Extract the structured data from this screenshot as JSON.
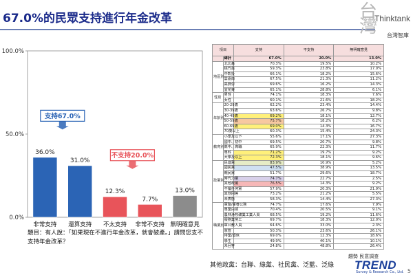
{
  "title": "67.0%的民眾支持進行年金改革",
  "brand": {
    "name": "Thinktank",
    "sub": "台灣智庫"
  },
  "chart_data": {
    "type": "bar",
    "categories": [
      "非常支持",
      "還算支持",
      "不太支持",
      "非常不支持",
      "無明確意見"
    ],
    "values": [
      36.0,
      31.0,
      12.3,
      7.7,
      13.0
    ],
    "value_labels": [
      "36.0%",
      "31.0%",
      "12.3%",
      "7.7%",
      "13.0%"
    ],
    "bar_colors": [
      "#2b64b5",
      "#2b64b5",
      "#e8545a",
      "#e8545a",
      "#8c8c8c"
    ],
    "ylim": [
      0,
      100
    ],
    "yticks": [
      "100.0%",
      "50.0%",
      "0.0%"
    ],
    "grid": false,
    "annotations": [
      {
        "text": "支持67.0%",
        "color": "#2b64b5",
        "spans": [
          0,
          1
        ]
      },
      {
        "text": "不支持20.0%",
        "color": "#e8545a",
        "spans": [
          2,
          3
        ]
      }
    ]
  },
  "question": "題目：有人說：「如果現在不進行年金改革，就會破產。」請問您支不支持年金改革？",
  "table": {
    "headers": [
      "項目",
      "支持",
      "不支持",
      "無明確意見"
    ],
    "total": {
      "label": "總計",
      "values": [
        "67.0%",
        "20.0%",
        "13.0%"
      ]
    },
    "groups": [
      {
        "name": "地區別",
        "rows": [
          {
            "label": "北北基",
            "values": [
              "70.3%",
              "19.5%",
              "10.2%"
            ]
          },
          {
            "label": "桃竹苗",
            "values": [
              "59.3%",
              "23.8%",
              "17.0%"
            ]
          },
          {
            "label": "中彰投",
            "values": [
              "66.1%",
              "18.2%",
              "15.6%"
            ]
          },
          {
            "label": "雲嘉南",
            "values": [
              "67.5%",
              "21.3%",
              "11.2%"
            ]
          },
          {
            "label": "高屏澎",
            "values": [
              "69.6%",
              "16.2%",
              "14.3%"
            ]
          },
          {
            "label": "宜花東",
            "values": [
              "65.1%",
              "28.8%",
              "6.1%"
            ]
          }
        ]
      },
      {
        "name": "性別",
        "rows": [
          {
            "label": "男性",
            "values": [
              "74.1%",
              "18.3%",
              "7.6%"
            ]
          },
          {
            "label": "女性",
            "values": [
              "60.1%",
              "21.6%",
              "18.2%"
            ]
          }
        ]
      },
      {
        "name": "年齡別",
        "rows": [
          {
            "label": "20-29歲",
            "values": [
              "62.2%",
              "23.4%",
              "14.4%"
            ]
          },
          {
            "label": "30-39歲",
            "values": [
              "63.6%",
              "26.7%",
              "9.8%"
            ]
          },
          {
            "label": "40-49歲",
            "values": [
              "69.2%",
              "18.1%",
              "12.7%"
            ]
          },
          {
            "label": "50-59歲",
            "values": [
              "75.7%",
              "18.2%",
              "6.2%"
            ]
          },
          {
            "label": "60-69歲",
            "values": [
              "69.0%",
              "14.3%",
              "16.7%"
            ]
          },
          {
            "label": "70歲以上",
            "values": [
              "60.3%",
              "15.4%",
              "24.3%"
            ]
          }
        ]
      },
      {
        "name": "教育別",
        "rows": [
          {
            "label": "小學及以下",
            "values": [
              "55.6%",
              "17.1%",
              "27.3%"
            ]
          },
          {
            "label": "國中、初中",
            "values": [
              "69.5%",
              "20.7%",
              "9.8%"
            ]
          },
          {
            "label": "高中、高職",
            "values": [
              "65.9%",
              "22.3%",
              "11.7%"
            ]
          },
          {
            "label": "專科",
            "values": [
              "71.2%",
              "19.7%",
              "9.2%"
            ]
          },
          {
            "label": "大學及以上",
            "values": [
              "72.3%",
              "18.1%",
              "9.6%"
            ]
          }
        ]
      },
      {
        "name": "政黨別",
        "rows": [
          {
            "label": "民進黨",
            "values": [
              "83.9%",
              "10.9%",
              "5.2%"
            ]
          },
          {
            "label": "國民黨",
            "values": [
              "47.5%",
              "38.9%",
              "13.5%"
            ]
          },
          {
            "label": "親民黨",
            "values": [
              "51.7%",
              "29.6%",
              "18.7%"
            ]
          },
          {
            "label": "時代力量",
            "values": [
              "74.7%",
              "22.7%",
              "2.5%"
            ]
          },
          {
            "label": "其他政黨",
            "values": [
              "76.5%",
              "14.3%",
              "9.2%"
            ]
          },
          {
            "label": "不偏任何黨",
            "values": [
              "57.9%",
              "20.3%",
              "21.9%"
            ]
          },
          {
            "label": "其他回答",
            "values": [
              "73.2%",
              "21.2%",
              "5.5%"
            ]
          },
          {
            "label": "未表態",
            "values": [
              "58.3%",
              "14.4%",
              "27.3%"
            ]
          }
        ]
      },
      {
        "name": "職業別",
        "rows": [
          {
            "label": "軍警/軍眷公務",
            "values": [
              "74.7%",
              "17.6%",
              "7.9%"
            ]
          },
          {
            "label": "專業白領",
            "values": [
              "70.4%",
              "20.5%",
              "9.1%"
            ]
          },
          {
            "label": "農林漁牧礦業工業人員",
            "values": [
              "68.5%",
              "19.2%",
              "11.6%"
            ]
          },
          {
            "label": "服務業勞工",
            "values": [
              "69.7%",
              "18.3%",
              "12.0%"
            ]
          },
          {
            "label": "軍公教人員",
            "values": [
              "64.6%",
              "33.0%",
              "2.3%"
            ]
          },
          {
            "label": "家管",
            "values": [
              "50.3%",
              "23.6%",
              "26.1%"
            ]
          },
          {
            "label": "待業/退休",
            "values": [
              "69.0%",
              "12.3%",
              "18.6%"
            ]
          },
          {
            "label": "學生",
            "values": [
              "49.9%",
              "40.1%",
              "10.1%"
            ]
          },
          {
            "label": "未回答",
            "values": [
              "24.8%",
              "48.8%",
              "26.4%"
            ]
          }
        ]
      }
    ],
    "highlights": {
      "colors": {
        "o": "#f7c8a0",
        "y": "#fff07a",
        "r": "#f6b7b7",
        "p": "#d8d0ea",
        "g": "#d8d8d8",
        "lg": "#e6ecc6",
        "b": "#cfe0f2"
      },
      "cells": [
        {
          "group": 2,
          "row": 2,
          "col": 0,
          "tone": "y"
        },
        {
          "group": 2,
          "row": 3,
          "col": 0,
          "tone": "o"
        },
        {
          "group": 2,
          "row": 4,
          "col": 0,
          "tone": "y"
        },
        {
          "group": 3,
          "row": 3,
          "col": 0,
          "tone": "y"
        },
        {
          "group": 3,
          "row": 4,
          "col": 0,
          "tone": "y"
        },
        {
          "group": 4,
          "row": 0,
          "col": 0,
          "tone": "lg"
        },
        {
          "group": 4,
          "row": 1,
          "col": 0,
          "tone": "b"
        },
        {
          "group": 4,
          "row": 3,
          "col": 0,
          "tone": "p"
        },
        {
          "group": 4,
          "row": 4,
          "col": 0,
          "tone": "r"
        }
      ]
    }
  },
  "footer": "其他政黨：台聯、綠黨、社民黨、泛藍、泛綠",
  "source": "趨勢 民意調查",
  "logo": {
    "name": "TREND",
    "sub": "Survey & Research Co., Ltd."
  },
  "page_number": "5"
}
